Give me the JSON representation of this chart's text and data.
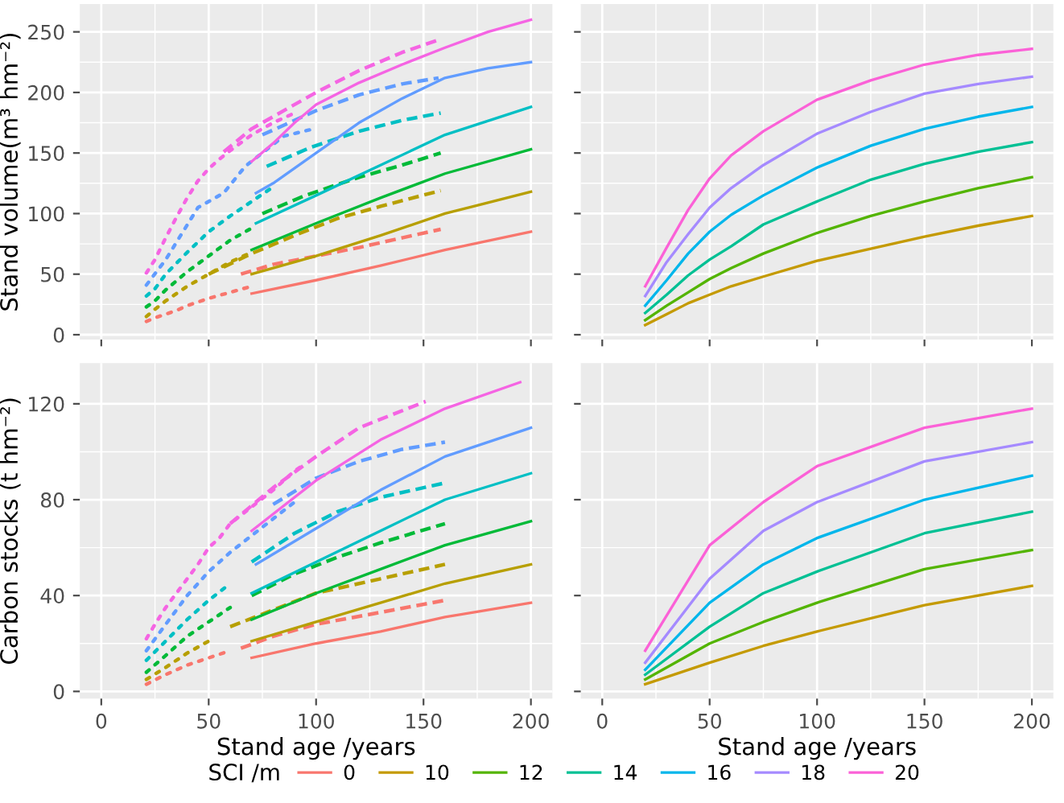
{
  "chart_data": [
    {
      "type": "line",
      "ylabel": "Stand volume(m³ hm⁻²)",
      "xlim": [
        -10,
        210
      ],
      "ylim": [
        -4,
        273
      ],
      "xticks": [
        0,
        50,
        100,
        150,
        200
      ],
      "yticks": [
        0,
        50,
        100,
        150,
        200,
        250
      ],
      "grid": true,
      "tick_labels": "y",
      "series": [
        {
          "color": "#F8766D",
          "line_style": "dotted",
          "x": [
            21,
            25,
            30,
            35,
            40,
            50,
            60,
            70
          ],
          "values": [
            11,
            14,
            17,
            20,
            24,
            30,
            35,
            40
          ]
        },
        {
          "color": "#F8766D",
          "line_style": "dashed",
          "x": [
            65,
            80,
            100,
            120,
            140,
            158
          ],
          "values": [
            50,
            58,
            65,
            72,
            80,
            87
          ]
        },
        {
          "color": "#F8766D",
          "line_style": "solid",
          "x": [
            70,
            100,
            130,
            160,
            200
          ],
          "values": [
            34,
            45,
            57,
            70,
            85
          ]
        },
        {
          "color": "#B79F00",
          "line_style": "dotted",
          "x": [
            21,
            25,
            30,
            40,
            50,
            60,
            70
          ],
          "values": [
            15,
            21,
            28,
            40,
            50,
            60,
            68
          ]
        },
        {
          "color": "#B79F00",
          "line_style": "dashed",
          "x": [
            50,
            70,
            90,
            110,
            130,
            158
          ],
          "values": [
            50,
            67,
            82,
            96,
            106,
            119
          ]
        },
        {
          "color": "#B79F00",
          "line_style": "solid",
          "x": [
            70,
            100,
            130,
            160,
            200
          ],
          "values": [
            50,
            65,
            82,
            100,
            118
          ]
        },
        {
          "color": "#00BA38",
          "line_style": "dotted",
          "x": [
            21,
            25,
            30,
            40,
            50,
            60,
            70
          ],
          "values": [
            23,
            28,
            37,
            52,
            65,
            78,
            88
          ]
        },
        {
          "color": "#00BA38",
          "line_style": "dashed",
          "x": [
            75,
            95,
            120,
            140,
            158
          ],
          "values": [
            100,
            115,
            130,
            140,
            150
          ]
        },
        {
          "color": "#00BA38",
          "line_style": "solid",
          "x": [
            70,
            100,
            130,
            160,
            200
          ],
          "values": [
            70,
            92,
            113,
            133,
            153
          ]
        },
        {
          "color": "#00BFC4",
          "line_style": "dotted",
          "x": [
            21,
            25,
            30,
            40,
            50,
            60,
            70,
            80
          ],
          "values": [
            32,
            38,
            50,
            68,
            85,
            98,
            110,
            122
          ]
        },
        {
          "color": "#00BFC4",
          "line_style": "dashed",
          "x": [
            77,
            98,
            120,
            140,
            158
          ],
          "values": [
            139,
            155,
            168,
            177,
            183
          ]
        },
        {
          "color": "#00BFC4",
          "line_style": "solid",
          "x": [
            72,
            100,
            130,
            160,
            200
          ],
          "values": [
            92,
            115,
            140,
            165,
            188
          ]
        },
        {
          "color": "#619CFF",
          "line_style": "dotted",
          "x": [
            21,
            30,
            45,
            57,
            67,
            85,
            99
          ],
          "values": [
            41,
            62,
            105,
            117,
            139,
            164,
            170
          ]
        },
        {
          "color": "#619CFF",
          "line_style": "dashed",
          "x": [
            75,
            100,
            120,
            140,
            157
          ],
          "values": [
            165,
            185,
            198,
            207,
            212
          ]
        },
        {
          "color": "#619CFF",
          "line_style": "solid",
          "x": [
            72,
            80,
            100,
            120,
            140,
            160,
            180,
            200
          ],
          "values": [
            117,
            125,
            150,
            175,
            195,
            212,
            220,
            225
          ]
        },
        {
          "color": "#F564E3",
          "line_style": "dotted",
          "x": [
            21,
            25,
            30,
            35,
            40,
            45,
            50,
            55,
            60,
            70,
            80,
            90
          ],
          "values": [
            51,
            62,
            80,
            97,
            113,
            127,
            137,
            145,
            152,
            165,
            175,
            183
          ]
        },
        {
          "color": "#F564E3",
          "line_style": "dashed",
          "x": [
            57,
            70,
            80,
            100,
            120,
            140,
            158
          ],
          "values": [
            151,
            170,
            180,
            200,
            218,
            233,
            244
          ]
        },
        {
          "color": "#F564E3",
          "line_style": "solid",
          "x": [
            70,
            80,
            90,
            100,
            120,
            140,
            160,
            180,
            200
          ],
          "values": [
            143,
            158,
            175,
            190,
            208,
            223,
            237,
            250,
            260
          ]
        }
      ]
    },
    {
      "type": "line",
      "xlim": [
        -10,
        210
      ],
      "ylim": [
        -4,
        273
      ],
      "xticks": [
        0,
        50,
        100,
        150,
        200
      ],
      "yticks": [
        0,
        50,
        100,
        150,
        200,
        250
      ],
      "grid": true,
      "tick_labels": false,
      "x": [
        20,
        30,
        40,
        50,
        60,
        75,
        100,
        125,
        150,
        175,
        200
      ],
      "series": [
        {
          "color": "#C49A00",
          "values": [
            8,
            17,
            26,
            33,
            40,
            48,
            61,
            71,
            81,
            90,
            98
          ]
        },
        {
          "color": "#53B400",
          "values": [
            12,
            24,
            35,
            46,
            55,
            67,
            84,
            98,
            110,
            121,
            130
          ]
        },
        {
          "color": "#00C094",
          "values": [
            18,
            33,
            49,
            62,
            73,
            91,
            110,
            128,
            141,
            151,
            159
          ]
        },
        {
          "color": "#00B6EB",
          "values": [
            24,
            45,
            67,
            85,
            99,
            115,
            138,
            156,
            170,
            180,
            188
          ]
        },
        {
          "color": "#A58AFF",
          "values": [
            32,
            60,
            83,
            105,
            121,
            140,
            166,
            184,
            199,
            207,
            213
          ]
        },
        {
          "color": "#FB61D7",
          "values": [
            40,
            72,
            103,
            129,
            148,
            168,
            194,
            210,
            223,
            231,
            236
          ]
        }
      ]
    },
    {
      "type": "line",
      "xlabel": "Stand age /years",
      "ylabel": "Carbon stocks (t hm⁻²)",
      "xlim": [
        -10,
        210
      ],
      "ylim": [
        -3,
        137
      ],
      "xticks": [
        0,
        50,
        100,
        150,
        200
      ],
      "yticks": [
        0,
        40,
        80,
        120
      ],
      "grid": true,
      "series": [
        {
          "color": "#F8766D",
          "line_style": "dotted",
          "x": [
            21,
            30,
            40,
            50,
            60
          ],
          "values": [
            3,
            7,
            11,
            14,
            17
          ]
        },
        {
          "color": "#F8766D",
          "line_style": "dashed",
          "x": [
            65,
            80,
            100,
            130,
            160
          ],
          "values": [
            18,
            23,
            28,
            33,
            38
          ]
        },
        {
          "color": "#F8766D",
          "line_style": "solid",
          "x": [
            70,
            100,
            130,
            160,
            200
          ],
          "values": [
            14,
            20,
            25,
            31,
            37
          ]
        },
        {
          "color": "#B79F00",
          "line_style": "dotted",
          "x": [
            21,
            30,
            40,
            50
          ],
          "values": [
            5,
            10,
            16,
            21
          ]
        },
        {
          "color": "#B79F00",
          "line_style": "dashed",
          "x": [
            60,
            80,
            100,
            130,
            160
          ],
          "values": [
            27,
            34,
            41,
            47,
            53
          ]
        },
        {
          "color": "#B79F00",
          "line_style": "solid",
          "x": [
            70,
            100,
            130,
            160,
            200
          ],
          "values": [
            21,
            29,
            37,
            45,
            53
          ]
        },
        {
          "color": "#00BA38",
          "line_style": "dotted",
          "x": [
            21,
            30,
            40,
            50,
            60
          ],
          "values": [
            8,
            15,
            23,
            29,
            35
          ]
        },
        {
          "color": "#00BA38",
          "line_style": "dashed",
          "x": [
            70,
            90,
            110,
            130,
            160
          ],
          "values": [
            40,
            49,
            56,
            62,
            70
          ]
        },
        {
          "color": "#00BA38",
          "line_style": "solid",
          "x": [
            70,
            100,
            130,
            160,
            200
          ],
          "values": [
            30,
            41,
            51,
            61,
            71
          ]
        },
        {
          "color": "#00BFC4",
          "line_style": "dotted",
          "x": [
            21,
            30,
            40,
            50,
            60
          ],
          "values": [
            13,
            21,
            30,
            38,
            45
          ]
        },
        {
          "color": "#00BFC4",
          "line_style": "dashed",
          "x": [
            70,
            90,
            110,
            130,
            160
          ],
          "values": [
            54,
            66,
            75,
            81,
            87
          ]
        },
        {
          "color": "#00BFC4",
          "line_style": "solid",
          "x": [
            70,
            100,
            130,
            160,
            200
          ],
          "values": [
            41,
            54,
            67,
            80,
            91
          ]
        },
        {
          "color": "#619CFF",
          "line_style": "dotted",
          "x": [
            21,
            30,
            40,
            50,
            60,
            70,
            80,
            90
          ],
          "values": [
            17,
            28,
            40,
            50,
            58,
            65,
            72,
            79
          ]
        },
        {
          "color": "#619CFF",
          "line_style": "dashed",
          "x": [
            80,
            100,
            120,
            140,
            160
          ],
          "values": [
            78,
            89,
            96,
            101,
            104
          ]
        },
        {
          "color": "#619CFF",
          "line_style": "solid",
          "x": [
            72,
            100,
            130,
            160,
            200
          ],
          "values": [
            53,
            68,
            84,
            98,
            110
          ]
        },
        {
          "color": "#F564E3",
          "line_style": "dotted",
          "x": [
            21,
            25,
            30,
            35,
            40,
            45,
            50,
            55,
            60,
            70,
            80,
            90,
            95
          ],
          "values": [
            22,
            28,
            35,
            41,
            47,
            53,
            60,
            64,
            70,
            77,
            84,
            92,
            95
          ]
        },
        {
          "color": "#F564E3",
          "line_style": "dashed",
          "x": [
            60,
            80,
            100,
            120,
            151
          ],
          "values": [
            70,
            85,
            98,
            110,
            121
          ]
        },
        {
          "color": "#F564E3",
          "line_style": "solid",
          "x": [
            70,
            100,
            130,
            160,
            195
          ],
          "values": [
            67,
            88,
            105,
            118,
            129
          ]
        }
      ]
    },
    {
      "type": "line",
      "xlabel": "Stand age /years",
      "xlim": [
        -10,
        210
      ],
      "ylim": [
        -3,
        137
      ],
      "xticks": [
        0,
        50,
        100,
        150,
        200
      ],
      "yticks": [
        0,
        40,
        80,
        120
      ],
      "grid": true,
      "tick_labels": "x",
      "legend": "bottom",
      "legend_title": "SCI /m",
      "x": [
        20,
        50,
        75,
        100,
        150,
        200
      ],
      "series": [
        {
          "name": "0",
          "color": "#F8766D",
          "values": [
            null,
            null,
            null,
            null,
            null,
            null
          ]
        },
        {
          "name": "10",
          "color": "#C49A00",
          "values": [
            3,
            12,
            19,
            25,
            36,
            44
          ]
        },
        {
          "name": "12",
          "color": "#53B400",
          "values": [
            5,
            20,
            29,
            37,
            51,
            59
          ]
        },
        {
          "name": "14",
          "color": "#00C094",
          "values": [
            7,
            27,
            41,
            50,
            66,
            75
          ]
        },
        {
          "name": "16",
          "color": "#00B6EB",
          "values": [
            9,
            37,
            53,
            64,
            80,
            90
          ]
        },
        {
          "name": "18",
          "color": "#A58AFF",
          "values": [
            12,
            47,
            67,
            79,
            96,
            104
          ]
        },
        {
          "name": "20",
          "color": "#FB61D7",
          "values": [
            17,
            61,
            79,
            94,
            110,
            118
          ]
        }
      ]
    }
  ]
}
